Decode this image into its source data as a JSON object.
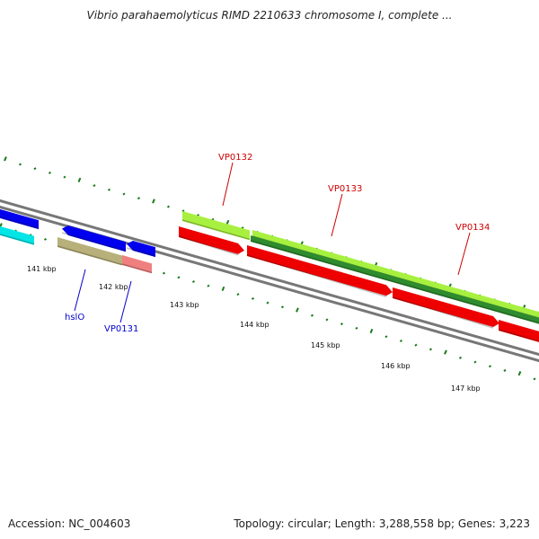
{
  "title": "Vibrio parahaemolyticus RIMD 2210633 chromosome I, complete ...",
  "footer": {
    "accession": "Accession: NC_004603",
    "topology": "Topology: circular; Length: 3,288,558 bp; Genes: 3,223"
  },
  "colors": {
    "backbone": "#777777",
    "tick": "#1a7a1a",
    "label_forward": "#cc0000",
    "label_reverse": "#0000cc"
  },
  "scale_ticks": [
    "141 kbp",
    "142 kbp",
    "143 kbp",
    "144 kbp",
    "145 kbp",
    "146 kbp",
    "147 kbp"
  ],
  "gene_labels": [
    {
      "text": "VP0132",
      "strand": "forward"
    },
    {
      "text": "VP0133",
      "strand": "forward"
    },
    {
      "text": "VP0134",
      "strand": "forward"
    },
    {
      "text": "hslO",
      "strand": "reverse"
    },
    {
      "text": "VP0131",
      "strand": "reverse"
    }
  ],
  "features": [
    {
      "name": "reverse-cds-blue-left",
      "color": "#0000ee",
      "strand": "reverse"
    },
    {
      "name": "reverse-cds-cyan-left",
      "color": "#00e5e5",
      "strand": "reverse"
    },
    {
      "name": "reverse-cds-blue-hslO",
      "color": "#0000ee",
      "strand": "reverse"
    },
    {
      "name": "reverse-cds-blue-small",
      "color": "#0000ee",
      "strand": "reverse"
    },
    {
      "name": "gene-hslO",
      "color": "#b8b07a",
      "strand": "reverse"
    },
    {
      "name": "gene-VP0131",
      "color": "#f08080",
      "strand": "reverse"
    },
    {
      "name": "gene-VP0132",
      "color": "#a8f040",
      "strand": "forward"
    },
    {
      "name": "gene-VP0133-VP0134",
      "color": "#a8f040",
      "strand": "forward"
    },
    {
      "name": "gene-VP0133-VP0134-dark",
      "color": "#2e8b2e",
      "strand": "forward"
    },
    {
      "name": "cds-VP0132",
      "color": "#ee0000",
      "strand": "forward"
    },
    {
      "name": "cds-VP0133",
      "color": "#ee0000",
      "strand": "forward"
    },
    {
      "name": "cds-VP0134",
      "color": "#ee0000",
      "strand": "forward"
    },
    {
      "name": "cds-right-edge",
      "color": "#ee0000",
      "strand": "forward"
    }
  ]
}
